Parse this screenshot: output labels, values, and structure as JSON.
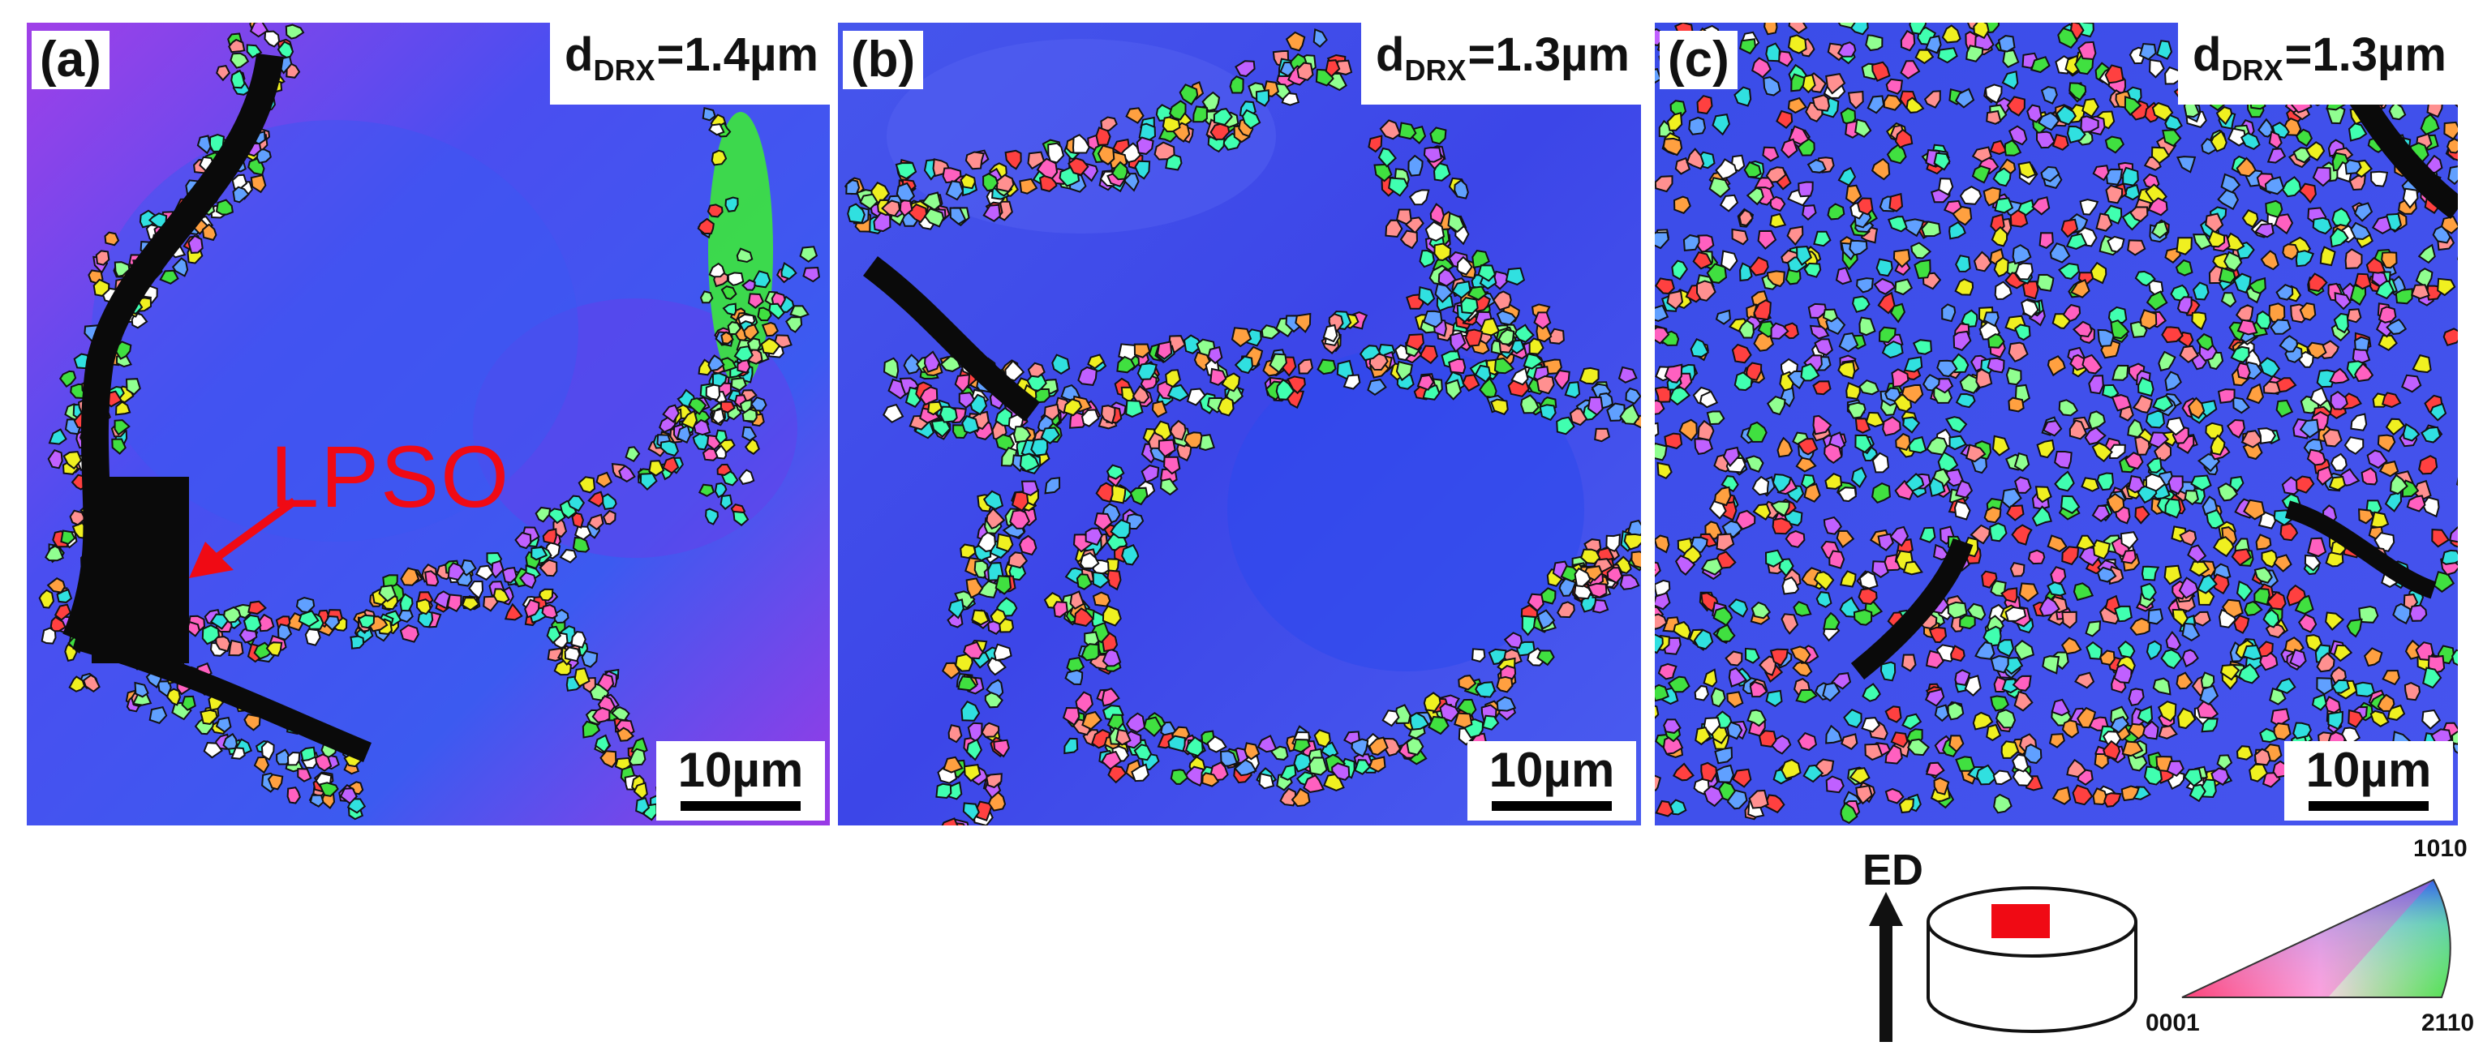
{
  "panels": [
    {
      "tag": "(a)",
      "d_prefix": "d",
      "d_sub": "DRX",
      "d_value": "=1.4µm",
      "scale_label": "10µm"
    },
    {
      "tag": "(b)",
      "d_prefix": "d",
      "d_sub": "DRX",
      "d_value": "=1.3µm",
      "scale_label": "10µm"
    },
    {
      "tag": "(c)",
      "d_prefix": "d",
      "d_sub": "DRX",
      "d_value": "=1.3µm",
      "scale_label": "10µm"
    }
  ],
  "annotation": {
    "label": "LPSO",
    "color": "#f00a14"
  },
  "legend": {
    "direction_label": "ED",
    "ipf_corners": {
      "left": "0001",
      "right": "2110",
      "top": "1010"
    },
    "sample_marker_color": "#f00a14"
  },
  "colors": {
    "matrix_blue": "#3c46e6",
    "matrix_violet": "#9428e6",
    "lpso_black": "#0a0a0a"
  }
}
